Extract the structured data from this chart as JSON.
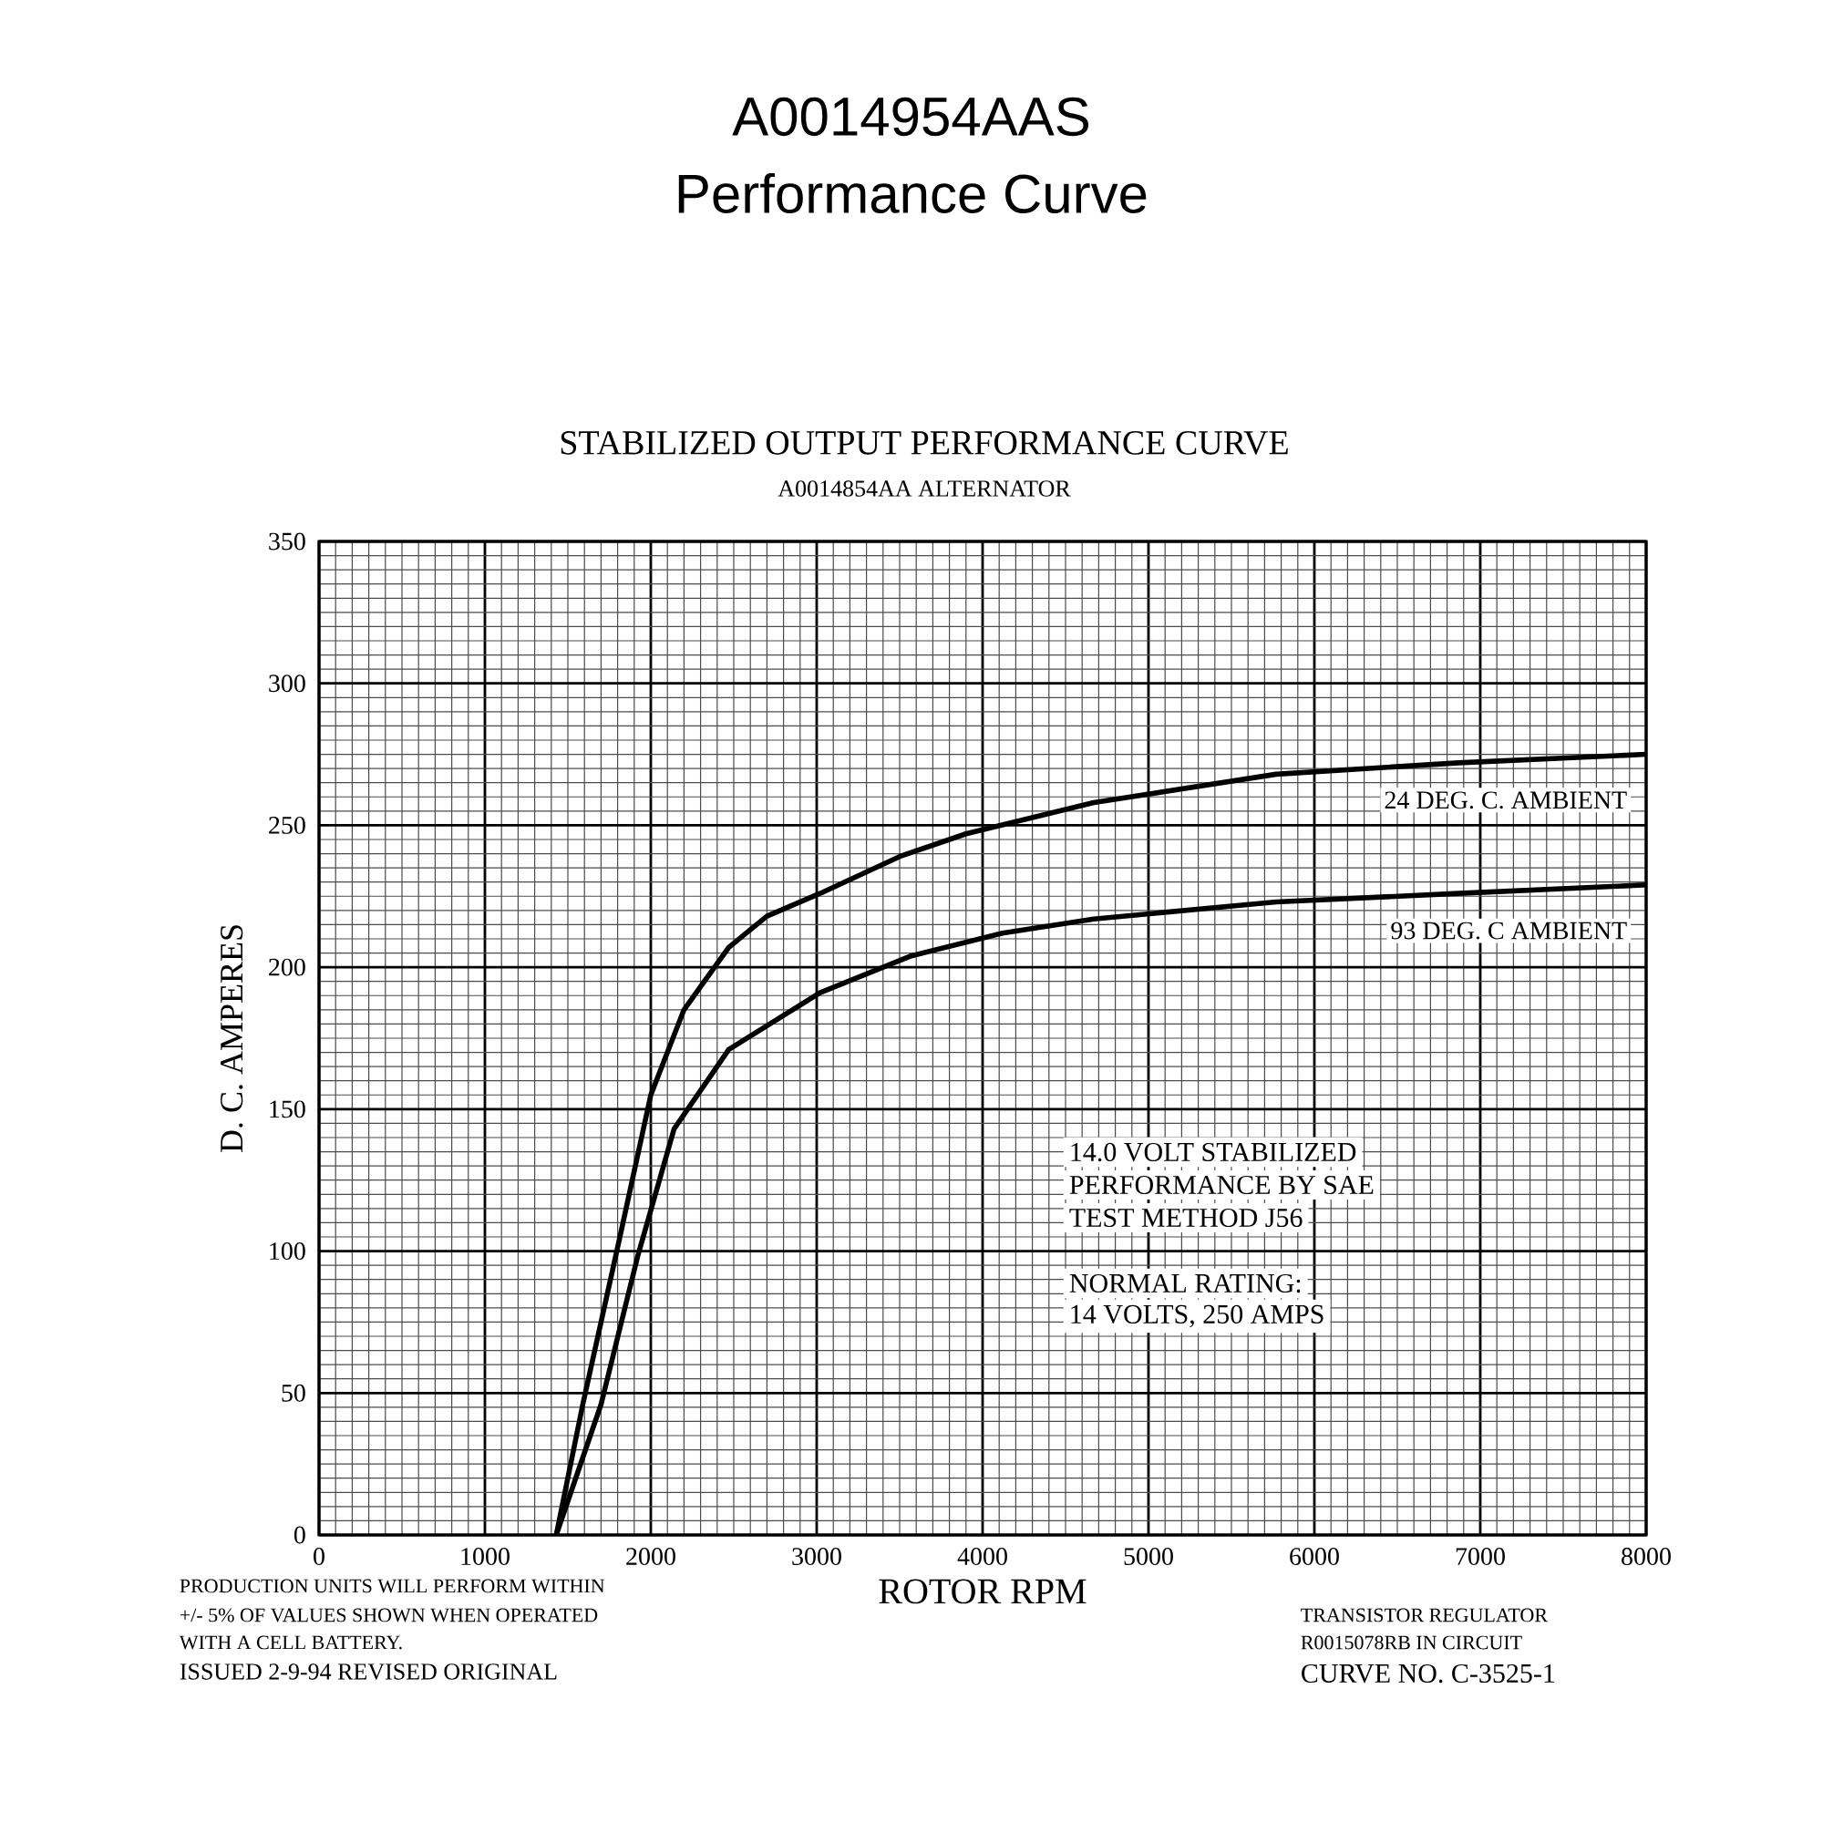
{
  "chart_data": {
    "type": "line",
    "title": "A0014954AAS",
    "subtitle": "Performance Curve",
    "xlabel": "ROTOR RPM",
    "ylabel": "D. C. AMPERES",
    "xlim": [
      0,
      8000
    ],
    "ylim": [
      0,
      350
    ],
    "xticks": [
      0,
      1000,
      2000,
      3000,
      4000,
      5000,
      6000,
      7000,
      8000
    ],
    "yticks": [
      0,
      50,
      100,
      150,
      200,
      250,
      300,
      350
    ],
    "grid": true,
    "series": [
      {
        "name": "24 DEG. C. AMBIENT",
        "color": "#000000",
        "x": [
          1430,
          1590,
          1810,
          2000,
          2200,
          2470,
          2700,
          3020,
          3500,
          3900,
          4670,
          5770,
          6870,
          8000
        ],
        "values": [
          0,
          46,
          104,
          155,
          185,
          207,
          218,
          226,
          239,
          247,
          258,
          268,
          272,
          275
        ]
      },
      {
        "name": "93 DEG. C AMBIENT",
        "color": "#000000",
        "x": [
          1430,
          1700,
          1920,
          2140,
          2470,
          3020,
          3570,
          4120,
          4670,
          5770,
          6870,
          8000
        ],
        "values": [
          0,
          46,
          98,
          143,
          171,
          191,
          204,
          212,
          217,
          223,
          226,
          229
        ]
      }
    ],
    "annotations": [
      "STABILIZED OUTPUT PERFORMANCE CURVE",
      "A0014854AA ALTERNATOR",
      "14.0 VOLT STABILIZED",
      "PERFORMANCE BY SAE",
      "TEST METHOD J56",
      "NORMAL RATING:",
      "14 VOLTS, 250 AMPS",
      "PRODUCTION UNITS WILL PERFORM WITHIN",
      "+/- 5% OF VALUES SHOWN WHEN OPERATED",
      "WITH A CELL BATTERY.",
      "ISSUED 2-9-94   REVISED ORIGINAL",
      "TRANSISTOR REGULATOR",
      "R0015078RB IN CIRCUIT",
      "CURVE NO. C-3525-1"
    ]
  }
}
